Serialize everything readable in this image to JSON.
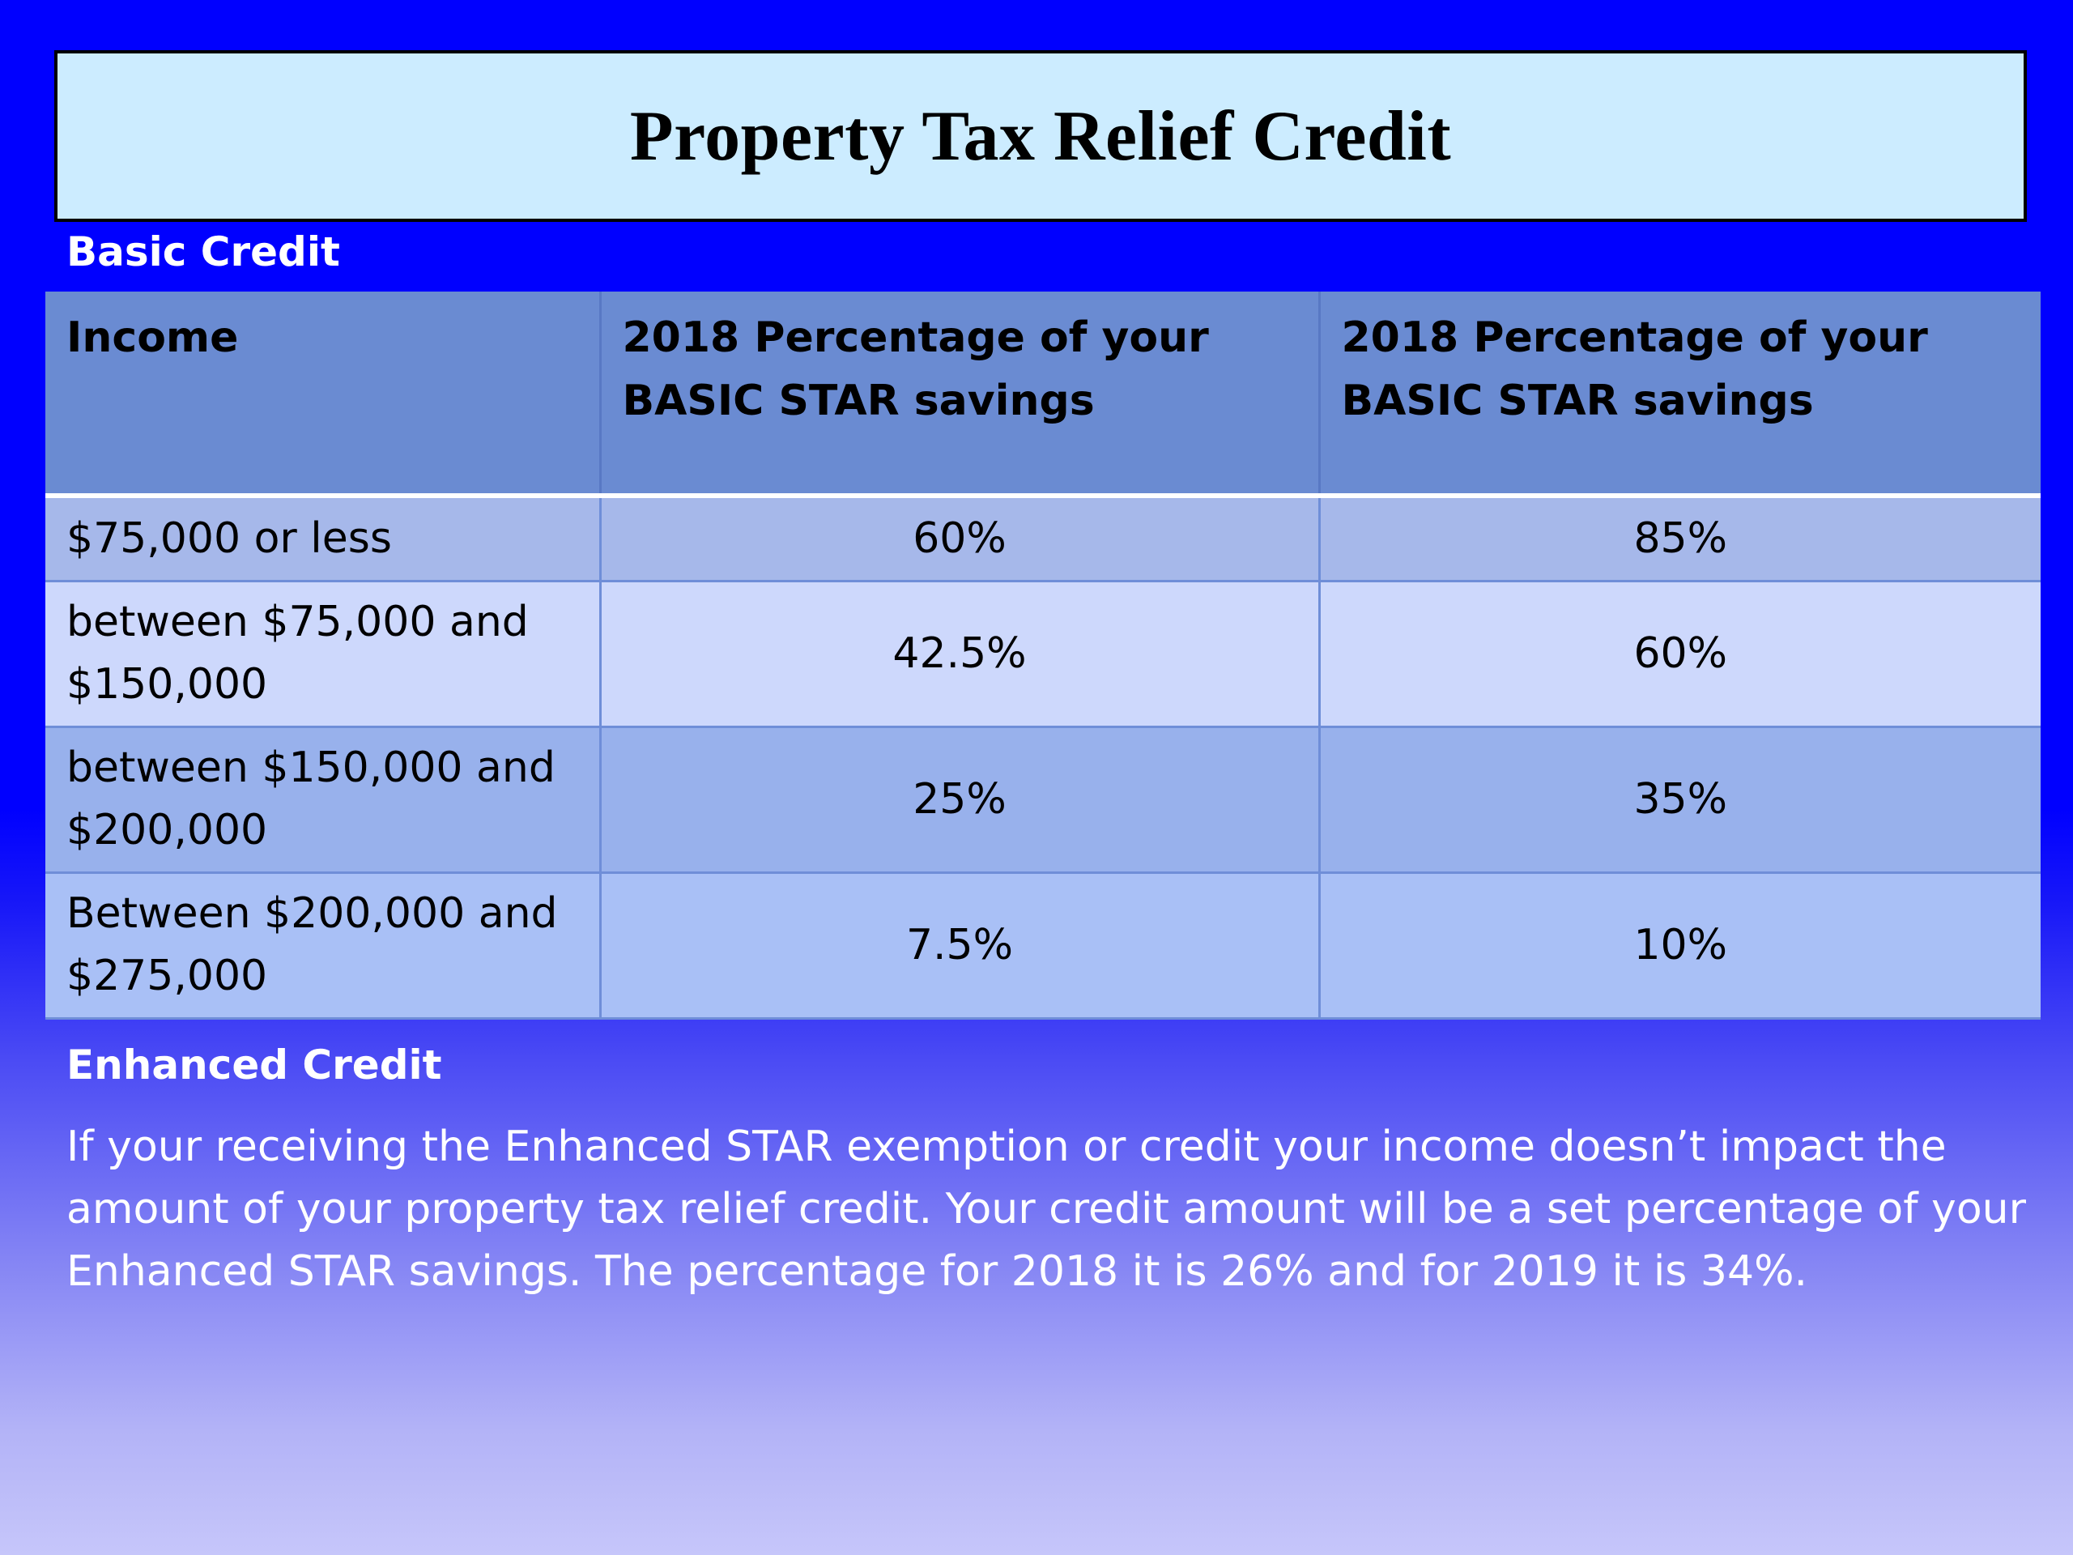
{
  "title": "Property Tax Relief Credit",
  "basic_credit": {
    "heading": "Basic Credit",
    "table": {
      "headers": [
        "Income",
        "2018 Percentage of your BASIC STAR savings",
        "2018 Percentage of your BASIC STAR savings"
      ],
      "rows": [
        [
          "$75,000 or less",
          "60%",
          "85%"
        ],
        [
          "between $75,000 and $150,000",
          "42.5%",
          "60%"
        ],
        [
          "between $150,000 and $200,000",
          "25%",
          "35%"
        ],
        [
          "Between $200,000 and $275,000",
          "7.5%",
          "10%"
        ]
      ]
    }
  },
  "enhanced_credit": {
    "heading": "Enhanced Credit",
    "body": "If your receiving the Enhanced STAR exemption or credit your income doesn’t impact the amount of your property tax relief credit. Your credit amount will be a set percentage of your Enhanced STAR savings. The percentage for 2018 it is 26%  and  for 2019 it is 34%."
  },
  "colors": {
    "background_top": "#0000ff",
    "background_bottom": "#c6c6fa",
    "title_box": "#ccecff",
    "table_header": "#6a8bd2",
    "row_1": "#a6b8ea",
    "row_2": "#cdd8fc",
    "row_3": "#98b1ec",
    "row_4": "#a9c0f6"
  }
}
